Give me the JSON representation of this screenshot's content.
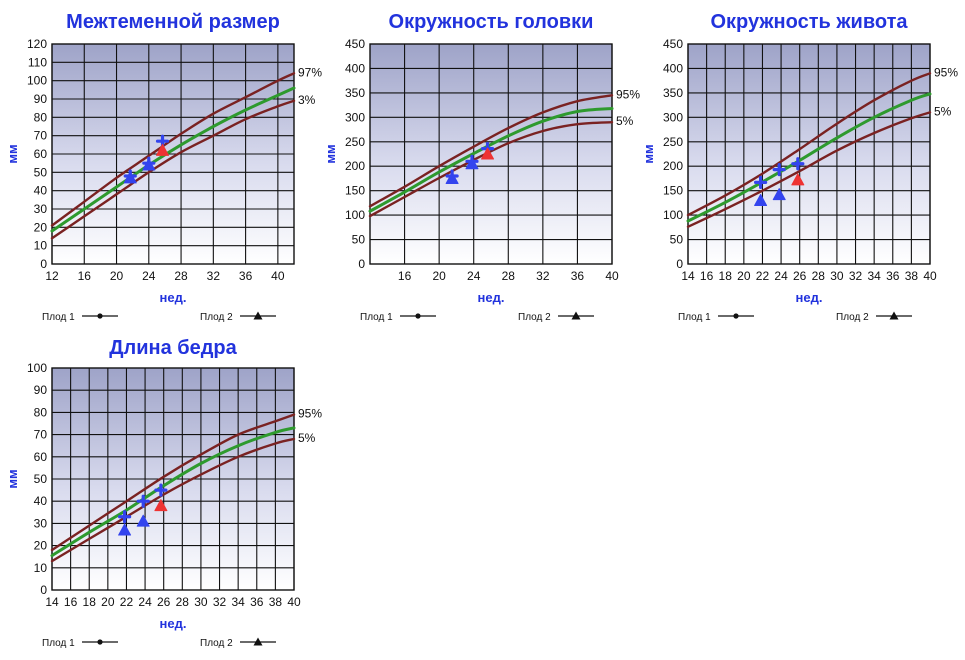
{
  "chart_data": [
    {
      "type": "line",
      "title": "Межтеменной размер",
      "xlabel": "нед.",
      "ylabel": "мм",
      "xlim": [
        12,
        42
      ],
      "ylim": [
        0,
        120
      ],
      "xticks": [
        12,
        16,
        20,
        24,
        28,
        32,
        36,
        40
      ],
      "yticks": [
        0,
        10,
        20,
        30,
        40,
        50,
        60,
        70,
        80,
        90,
        100,
        110,
        120
      ],
      "grid": true,
      "series": [
        {
          "name": "97%",
          "role": "upper",
          "color": "#7a2222",
          "x": [
            12,
            16,
            20,
            24,
            28,
            32,
            36,
            40,
            42
          ],
          "y": [
            21,
            34,
            47,
            59,
            71,
            82,
            91,
            100,
            104
          ]
        },
        {
          "role": "median",
          "color": "#2e9a2e",
          "x": [
            12,
            16,
            20,
            24,
            28,
            32,
            36,
            40,
            42
          ],
          "y": [
            18,
            30,
            42,
            54,
            65,
            75,
            84,
            92,
            96
          ]
        },
        {
          "name": "3%",
          "role": "lower",
          "color": "#7a2222",
          "x": [
            12,
            16,
            20,
            24,
            28,
            32,
            36,
            40,
            42
          ],
          "y": [
            14,
            26,
            38,
            50,
            61,
            70,
            79,
            86,
            89
          ]
        }
      ],
      "points": [
        {
          "series": "Плод 1",
          "marker": "plus",
          "color": "#3344ee",
          "x": 21.7,
          "y": 48
        },
        {
          "series": "Плод 1",
          "marker": "plus",
          "color": "#3344ee",
          "x": 24,
          "y": 55
        },
        {
          "series": "Плод 1",
          "marker": "plus",
          "color": "#3344ee",
          "x": 25.7,
          "y": 67
        },
        {
          "series": "Плод 2",
          "marker": "triangle",
          "color": "#3344ee",
          "x": 21.7,
          "y": 47
        },
        {
          "series": "Плод 2",
          "marker": "triangle",
          "color": "#3344ee",
          "x": 24,
          "y": 54
        },
        {
          "series": "Плод 2",
          "marker": "triangle",
          "color": "#ee3333",
          "x": 25.7,
          "y": 62
        }
      ],
      "legend": [
        {
          "label": "Плод 1",
          "marker": "dot"
        },
        {
          "label": "Плод 2",
          "marker": "triangle"
        }
      ]
    },
    {
      "type": "line",
      "title": "Окружность головки",
      "xlabel": "нед.",
      "ylabel": "мм",
      "xlim": [
        12,
        40
      ],
      "ylim": [
        0,
        450
      ],
      "xticks": [
        16,
        20,
        24,
        28,
        32,
        36,
        40
      ],
      "yticks": [
        0,
        50,
        100,
        150,
        200,
        250,
        300,
        350,
        400,
        450
      ],
      "grid": true,
      "series": [
        {
          "name": "95%",
          "role": "upper",
          "color": "#7a2222",
          "x": [
            12,
            16,
            20,
            24,
            28,
            32,
            36,
            40
          ],
          "y": [
            118,
            158,
            200,
            240,
            278,
            310,
            333,
            345
          ]
        },
        {
          "role": "median",
          "color": "#2e9a2e",
          "x": [
            12,
            16,
            20,
            24,
            28,
            32,
            36,
            40
          ],
          "y": [
            108,
            147,
            188,
            226,
            262,
            292,
            312,
            318
          ]
        },
        {
          "name": "5%",
          "role": "lower",
          "color": "#7a2222",
          "x": [
            12,
            16,
            20,
            24,
            28,
            32,
            36,
            40
          ],
          "y": [
            98,
            137,
            176,
            213,
            247,
            272,
            286,
            290
          ]
        }
      ],
      "points": [
        {
          "series": "Плод 1",
          "marker": "plus",
          "color": "#3344ee",
          "x": 21.5,
          "y": 180
        },
        {
          "series": "Плод 1",
          "marker": "plus",
          "color": "#3344ee",
          "x": 23.8,
          "y": 210
        },
        {
          "series": "Плод 1",
          "marker": "plus",
          "color": "#3344ee",
          "x": 25.6,
          "y": 236
        },
        {
          "series": "Плод 2",
          "marker": "triangle",
          "color": "#3344ee",
          "x": 21.5,
          "y": 175
        },
        {
          "series": "Плод 2",
          "marker": "triangle",
          "color": "#3344ee",
          "x": 23.8,
          "y": 205
        },
        {
          "series": "Плод 2",
          "marker": "triangle",
          "color": "#ee3333",
          "x": 25.6,
          "y": 225
        }
      ],
      "legend": [
        {
          "label": "Плод 1",
          "marker": "dot"
        },
        {
          "label": "Плод 2",
          "marker": "triangle"
        }
      ]
    },
    {
      "type": "line",
      "title": "Окружность живота",
      "xlabel": "нед.",
      "ylabel": "мм",
      "xlim": [
        14,
        40
      ],
      "ylim": [
        0,
        450
      ],
      "xticks": [
        14,
        16,
        18,
        20,
        22,
        24,
        26,
        28,
        30,
        32,
        34,
        36,
        38,
        40
      ],
      "yticks": [
        0,
        50,
        100,
        150,
        200,
        250,
        300,
        350,
        400,
        450
      ],
      "grid": true,
      "series": [
        {
          "name": "95%",
          "role": "upper",
          "color": "#7a2222",
          "x": [
            14,
            18,
            22,
            26,
            30,
            34,
            38,
            40
          ],
          "y": [
            100,
            140,
            185,
            235,
            287,
            335,
            375,
            390
          ]
        },
        {
          "role": "median",
          "color": "#2e9a2e",
          "x": [
            14,
            18,
            22,
            26,
            30,
            34,
            38,
            40
          ],
          "y": [
            88,
            126,
            168,
            212,
            258,
            300,
            335,
            348
          ]
        },
        {
          "name": "5%",
          "role": "lower",
          "color": "#7a2222",
          "x": [
            14,
            18,
            22,
            26,
            30,
            34,
            38,
            40
          ],
          "y": [
            76,
            112,
            150,
            190,
            232,
            268,
            298,
            310
          ]
        }
      ],
      "points": [
        {
          "series": "Плод 1",
          "marker": "plus",
          "color": "#3344ee",
          "x": 21.8,
          "y": 167
        },
        {
          "series": "Плод 1",
          "marker": "plus",
          "color": "#3344ee",
          "x": 23.8,
          "y": 193
        },
        {
          "series": "Плод 1",
          "marker": "plus",
          "color": "#3344ee",
          "x": 25.8,
          "y": 205
        },
        {
          "series": "Плод 2",
          "marker": "triangle",
          "color": "#3344ee",
          "x": 21.8,
          "y": 130
        },
        {
          "series": "Плод 2",
          "marker": "triangle",
          "color": "#3344ee",
          "x": 23.8,
          "y": 142
        },
        {
          "series": "Плод 2",
          "marker": "triangle",
          "color": "#ee3333",
          "x": 25.8,
          "y": 172
        }
      ],
      "legend": [
        {
          "label": "Плод 1",
          "marker": "dot"
        },
        {
          "label": "Плод 2",
          "marker": "triangle"
        }
      ]
    },
    {
      "type": "line",
      "title": "Длина бедра",
      "xlabel": "нед.",
      "ylabel": "мм",
      "xlim": [
        14,
        40
      ],
      "ylim": [
        0,
        100
      ],
      "xticks": [
        14,
        16,
        18,
        20,
        22,
        24,
        26,
        28,
        30,
        32,
        34,
        36,
        38,
        40
      ],
      "yticks": [
        0,
        10,
        20,
        30,
        40,
        50,
        60,
        70,
        80,
        90,
        100
      ],
      "grid": true,
      "series": [
        {
          "name": "95%",
          "role": "upper",
          "color": "#7a2222",
          "x": [
            14,
            18,
            22,
            26,
            30,
            34,
            38,
            40
          ],
          "y": [
            18,
            29,
            40,
            51,
            61,
            70,
            76,
            79
          ]
        },
        {
          "role": "median",
          "color": "#2e9a2e",
          "x": [
            14,
            18,
            22,
            26,
            30,
            34,
            38,
            40
          ],
          "y": [
            15.5,
            26,
            36,
            47,
            57,
            65,
            71,
            73
          ]
        },
        {
          "name": "5%",
          "role": "lower",
          "color": "#7a2222",
          "x": [
            14,
            18,
            22,
            26,
            30,
            34,
            38,
            40
          ],
          "y": [
            13,
            23,
            33,
            43,
            52,
            60,
            66,
            68
          ]
        }
      ],
      "points": [
        {
          "series": "Плод 1",
          "marker": "plus",
          "color": "#3344ee",
          "x": 21.8,
          "y": 33
        },
        {
          "series": "Плод 1",
          "marker": "plus",
          "color": "#3344ee",
          "x": 23.8,
          "y": 40
        },
        {
          "series": "Плод 1",
          "marker": "plus",
          "color": "#3344ee",
          "x": 25.7,
          "y": 45
        },
        {
          "series": "Плод 2",
          "marker": "triangle",
          "color": "#3344ee",
          "x": 21.8,
          "y": 27
        },
        {
          "series": "Плод 2",
          "marker": "triangle",
          "color": "#3344ee",
          "x": 23.8,
          "y": 31
        },
        {
          "series": "Плод 2",
          "marker": "triangle",
          "color": "#ee3333",
          "x": 25.7,
          "y": 38
        }
      ],
      "legend": [
        {
          "label": "Плод 1",
          "marker": "dot"
        },
        {
          "label": "Плод 2",
          "marker": "triangle"
        }
      ]
    }
  ]
}
